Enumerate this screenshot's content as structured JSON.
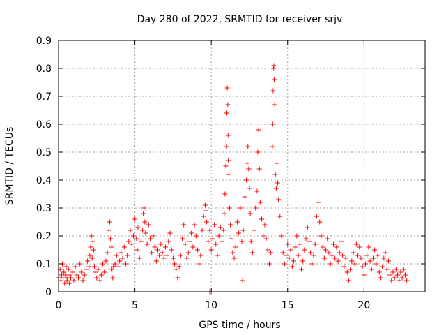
{
  "chart_data": {
    "type": "scatter",
    "title": "Day 280 of 2022, SRMTID for receiver srjv",
    "xlabel": "GPS time / hours",
    "ylabel": "SRMTID / TECUs",
    "xlim": [
      0,
      24
    ],
    "ylim": [
      0,
      0.9
    ],
    "xticks": [
      0,
      5,
      10,
      15,
      20
    ],
    "yticks": [
      0,
      0.1,
      0.2,
      0.3,
      0.4,
      0.5,
      0.6,
      0.7,
      0.8,
      0.9
    ],
    "xtick_labels": [
      "0",
      "5",
      "10",
      "15",
      "20"
    ],
    "ytick_labels": [
      "0",
      "0.1",
      "0.2",
      "0.3",
      "0.4",
      "0.5",
      "0.6",
      "0.7",
      "0.8",
      "0.9"
    ],
    "grid": true,
    "marker": "+",
    "color": "#ff0000",
    "series": [
      {
        "name": "SRMTID",
        "points": [
          [
            0.0,
            0.05
          ],
          [
            0.1,
            0.08
          ],
          [
            0.15,
            0.04
          ],
          [
            0.2,
            0.06
          ],
          [
            0.25,
            0.1
          ],
          [
            0.3,
            0.05
          ],
          [
            0.35,
            0.07
          ],
          [
            0.4,
            0.03
          ],
          [
            0.45,
            0.06
          ],
          [
            0.5,
            0.09
          ],
          [
            0.55,
            0.04
          ],
          [
            0.6,
            0.05
          ],
          [
            0.65,
            0.08
          ],
          [
            0.7,
            0.03
          ],
          [
            0.75,
            0.06
          ],
          [
            0.8,
            0.05
          ],
          [
            0.9,
            0.07
          ],
          [
            1.0,
            0.04
          ],
          [
            1.1,
            0.09
          ],
          [
            1.2,
            0.06
          ],
          [
            1.3,
            0.05
          ],
          [
            1.4,
            0.1
          ],
          [
            1.5,
            0.07
          ],
          [
            1.6,
            0.04
          ],
          [
            1.7,
            0.06
          ],
          [
            1.8,
            0.08
          ],
          [
            1.9,
            0.11
          ],
          [
            2.0,
            0.09
          ],
          [
            2.05,
            0.13
          ],
          [
            2.1,
            0.16
          ],
          [
            2.15,
            0.2
          ],
          [
            2.2,
            0.12
          ],
          [
            2.25,
            0.18
          ],
          [
            2.3,
            0.15
          ],
          [
            2.35,
            0.09
          ],
          [
            2.4,
            0.07
          ],
          [
            2.5,
            0.05
          ],
          [
            2.6,
            0.08
          ],
          [
            2.7,
            0.04
          ],
          [
            2.8,
            0.06
          ],
          [
            2.9,
            0.1
          ],
          [
            3.0,
            0.07
          ],
          [
            3.1,
            0.11
          ],
          [
            3.2,
            0.14
          ],
          [
            3.3,
            0.22
          ],
          [
            3.35,
            0.25
          ],
          [
            3.4,
            0.19
          ],
          [
            3.45,
            0.16
          ],
          [
            3.5,
            0.08
          ],
          [
            3.55,
            0.05
          ],
          [
            3.6,
            0.09
          ],
          [
            3.7,
            0.1
          ],
          [
            3.8,
            0.13
          ],
          [
            3.9,
            0.09
          ],
          [
            4.0,
            0.11
          ],
          [
            4.1,
            0.14
          ],
          [
            4.2,
            0.12
          ],
          [
            4.3,
            0.16
          ],
          [
            4.4,
            0.1
          ],
          [
            4.5,
            0.13
          ],
          [
            4.6,
            0.18
          ],
          [
            4.7,
            0.22
          ],
          [
            4.8,
            0.17
          ],
          [
            4.9,
            0.2
          ],
          [
            5.0,
            0.26
          ],
          [
            5.1,
            0.19
          ],
          [
            5.15,
            0.15
          ],
          [
            5.2,
            0.23
          ],
          [
            5.3,
            0.12
          ],
          [
            5.4,
            0.18
          ],
          [
            5.5,
            0.22
          ],
          [
            5.55,
            0.28
          ],
          [
            5.6,
            0.3
          ],
          [
            5.65,
            0.25
          ],
          [
            5.7,
            0.21
          ],
          [
            5.8,
            0.17
          ],
          [
            5.9,
            0.24
          ],
          [
            6.0,
            0.19
          ],
          [
            6.1,
            0.14
          ],
          [
            6.2,
            0.2
          ],
          [
            6.3,
            0.16
          ],
          [
            6.4,
            0.11
          ],
          [
            6.5,
            0.15
          ],
          [
            6.6,
            0.13
          ],
          [
            6.7,
            0.17
          ],
          [
            6.8,
            0.14
          ],
          [
            6.9,
            0.12
          ],
          [
            7.0,
            0.16
          ],
          [
            7.1,
            0.13
          ],
          [
            7.2,
            0.18
          ],
          [
            7.3,
            0.21
          ],
          [
            7.4,
            0.15
          ],
          [
            7.5,
            0.12
          ],
          [
            7.6,
            0.1
          ],
          [
            7.7,
            0.08
          ],
          [
            7.8,
            0.05
          ],
          [
            7.9,
            0.09
          ],
          [
            8.0,
            0.13
          ],
          [
            8.1,
            0.19
          ],
          [
            8.2,
            0.24
          ],
          [
            8.3,
            0.17
          ],
          [
            8.4,
            0.12
          ],
          [
            8.5,
            0.14
          ],
          [
            8.6,
            0.18
          ],
          [
            8.7,
            0.21
          ],
          [
            8.8,
            0.16
          ],
          [
            8.9,
            0.24
          ],
          [
            9.0,
            0.2
          ],
          [
            9.1,
            0.15
          ],
          [
            9.2,
            0.1
          ],
          [
            9.3,
            0.13
          ],
          [
            9.4,
            0.22
          ],
          [
            9.5,
            0.27
          ],
          [
            9.6,
            0.31
          ],
          [
            9.65,
            0.29
          ],
          [
            9.7,
            0.25
          ],
          [
            9.8,
            0.18
          ],
          [
            9.9,
            0.22
          ],
          [
            10.0,
            0.15
          ],
          [
            10.1,
            0.19
          ],
          [
            10.2,
            0.24
          ],
          [
            10.3,
            0.17
          ],
          [
            10.4,
            0.13
          ],
          [
            10.5,
            0.2
          ],
          [
            10.6,
            0.23
          ],
          [
            10.7,
            0.18
          ],
          [
            10.8,
            0.22
          ],
          [
            10.85,
            0.28
          ],
          [
            10.9,
            0.35
          ],
          [
            10.95,
            0.45
          ],
          [
            11.0,
            0.52
          ],
          [
            11.02,
            0.64
          ],
          [
            11.05,
            0.73
          ],
          [
            11.08,
            0.67
          ],
          [
            11.1,
            0.56
          ],
          [
            11.12,
            0.47
          ],
          [
            11.15,
            0.42
          ],
          [
            11.2,
            0.3
          ],
          [
            11.25,
            0.24
          ],
          [
            11.3,
            0.19
          ],
          [
            11.4,
            0.14
          ],
          [
            11.5,
            0.12
          ],
          [
            11.6,
            0.16
          ],
          [
            11.7,
            0.25
          ],
          [
            11.8,
            0.21
          ],
          [
            11.9,
            0.3
          ],
          [
            12.0,
            0.18
          ],
          [
            12.05,
            0.04
          ],
          [
            12.1,
            0.22
          ],
          [
            12.2,
            0.34
          ],
          [
            12.3,
            0.4
          ],
          [
            12.35,
            0.46
          ],
          [
            12.4,
            0.52
          ],
          [
            12.45,
            0.44
          ],
          [
            12.5,
            0.37
          ],
          [
            12.55,
            0.28
          ],
          [
            12.6,
            0.18
          ],
          [
            12.7,
            0.14
          ],
          [
            12.8,
            0.22
          ],
          [
            12.9,
            0.3
          ],
          [
            13.0,
            0.36
          ],
          [
            13.05,
            0.5
          ],
          [
            13.1,
            0.58
          ],
          [
            13.15,
            0.44
          ],
          [
            13.2,
            0.32
          ],
          [
            13.3,
            0.26
          ],
          [
            13.4,
            0.2
          ],
          [
            13.5,
            0.24
          ],
          [
            13.6,
            0.19
          ],
          [
            13.7,
            0.15
          ],
          [
            13.8,
            0.1
          ],
          [
            13.9,
            0.14
          ],
          [
            14.0,
            0.52
          ],
          [
            14.02,
            0.6
          ],
          [
            14.05,
            0.72
          ],
          [
            14.08,
            0.8
          ],
          [
            14.1,
            0.81
          ],
          [
            14.12,
            0.76
          ],
          [
            14.15,
            0.67
          ],
          [
            14.2,
            0.42
          ],
          [
            14.25,
            0.37
          ],
          [
            14.3,
            0.46
          ],
          [
            14.35,
            0.39
          ],
          [
            14.4,
            0.33
          ],
          [
            14.5,
            0.27
          ],
          [
            14.6,
            0.2
          ],
          [
            14.7,
            0.14
          ],
          [
            14.8,
            0.1
          ],
          [
            14.9,
            0.13
          ],
          [
            15.0,
            0.17
          ],
          [
            15.1,
            0.12
          ],
          [
            15.2,
            0.15
          ],
          [
            15.3,
            0.09
          ],
          [
            15.4,
            0.11
          ],
          [
            15.5,
            0.16
          ],
          [
            15.6,
            0.2
          ],
          [
            15.7,
            0.13
          ],
          [
            15.8,
            0.17
          ],
          [
            15.9,
            0.08
          ],
          [
            16.0,
            0.11
          ],
          [
            16.1,
            0.15
          ],
          [
            16.2,
            0.19
          ],
          [
            16.3,
            0.23
          ],
          [
            16.4,
            0.18
          ],
          [
            16.5,
            0.14
          ],
          [
            16.6,
            0.1
          ],
          [
            16.7,
            0.13
          ],
          [
            16.8,
            0.17
          ],
          [
            16.9,
            0.27
          ],
          [
            17.0,
            0.32
          ],
          [
            17.1,
            0.25
          ],
          [
            17.2,
            0.2
          ],
          [
            17.3,
            0.16
          ],
          [
            17.4,
            0.12
          ],
          [
            17.5,
            0.15
          ],
          [
            17.6,
            0.19
          ],
          [
            17.7,
            0.14
          ],
          [
            17.8,
            0.1
          ],
          [
            17.9,
            0.13
          ],
          [
            18.0,
            0.17
          ],
          [
            18.1,
            0.12
          ],
          [
            18.2,
            0.16
          ],
          [
            18.3,
            0.11
          ],
          [
            18.4,
            0.14
          ],
          [
            18.5,
            0.18
          ],
          [
            18.6,
            0.13
          ],
          [
            18.7,
            0.09
          ],
          [
            18.8,
            0.12
          ],
          [
            18.9,
            0.07
          ],
          [
            19.0,
            0.04
          ],
          [
            19.1,
            0.08
          ],
          [
            19.2,
            0.11
          ],
          [
            19.3,
            0.14
          ],
          [
            19.4,
            0.1
          ],
          [
            19.5,
            0.17
          ],
          [
            19.6,
            0.13
          ],
          [
            19.7,
            0.16
          ],
          [
            19.8,
            0.12
          ],
          [
            19.9,
            0.09
          ],
          [
            20.0,
            0.06
          ],
          [
            20.1,
            0.1
          ],
          [
            20.2,
            0.13
          ],
          [
            20.3,
            0.16
          ],
          [
            20.4,
            0.11
          ],
          [
            20.5,
            0.08
          ],
          [
            20.6,
            0.12
          ],
          [
            20.7,
            0.15
          ],
          [
            20.8,
            0.1
          ],
          [
            20.9,
            0.13
          ],
          [
            21.0,
            0.07
          ],
          [
            21.1,
            0.05
          ],
          [
            21.2,
            0.09
          ],
          [
            21.3,
            0.12
          ],
          [
            21.4,
            0.14
          ],
          [
            21.5,
            0.08
          ],
          [
            21.6,
            0.11
          ],
          [
            21.7,
            0.06
          ],
          [
            21.8,
            0.04
          ],
          [
            21.9,
            0.07
          ],
          [
            22.0,
            0.05
          ],
          [
            22.1,
            0.08
          ],
          [
            22.2,
            0.06
          ],
          [
            22.3,
            0.04
          ],
          [
            22.4,
            0.07
          ],
          [
            22.5,
            0.05
          ],
          [
            22.6,
            0.08
          ],
          [
            22.7,
            0.06
          ],
          [
            22.8,
            0.04
          ],
          [
            9.9,
            0.0
          ],
          [
            10.0,
            0.0
          ]
        ]
      }
    ]
  }
}
